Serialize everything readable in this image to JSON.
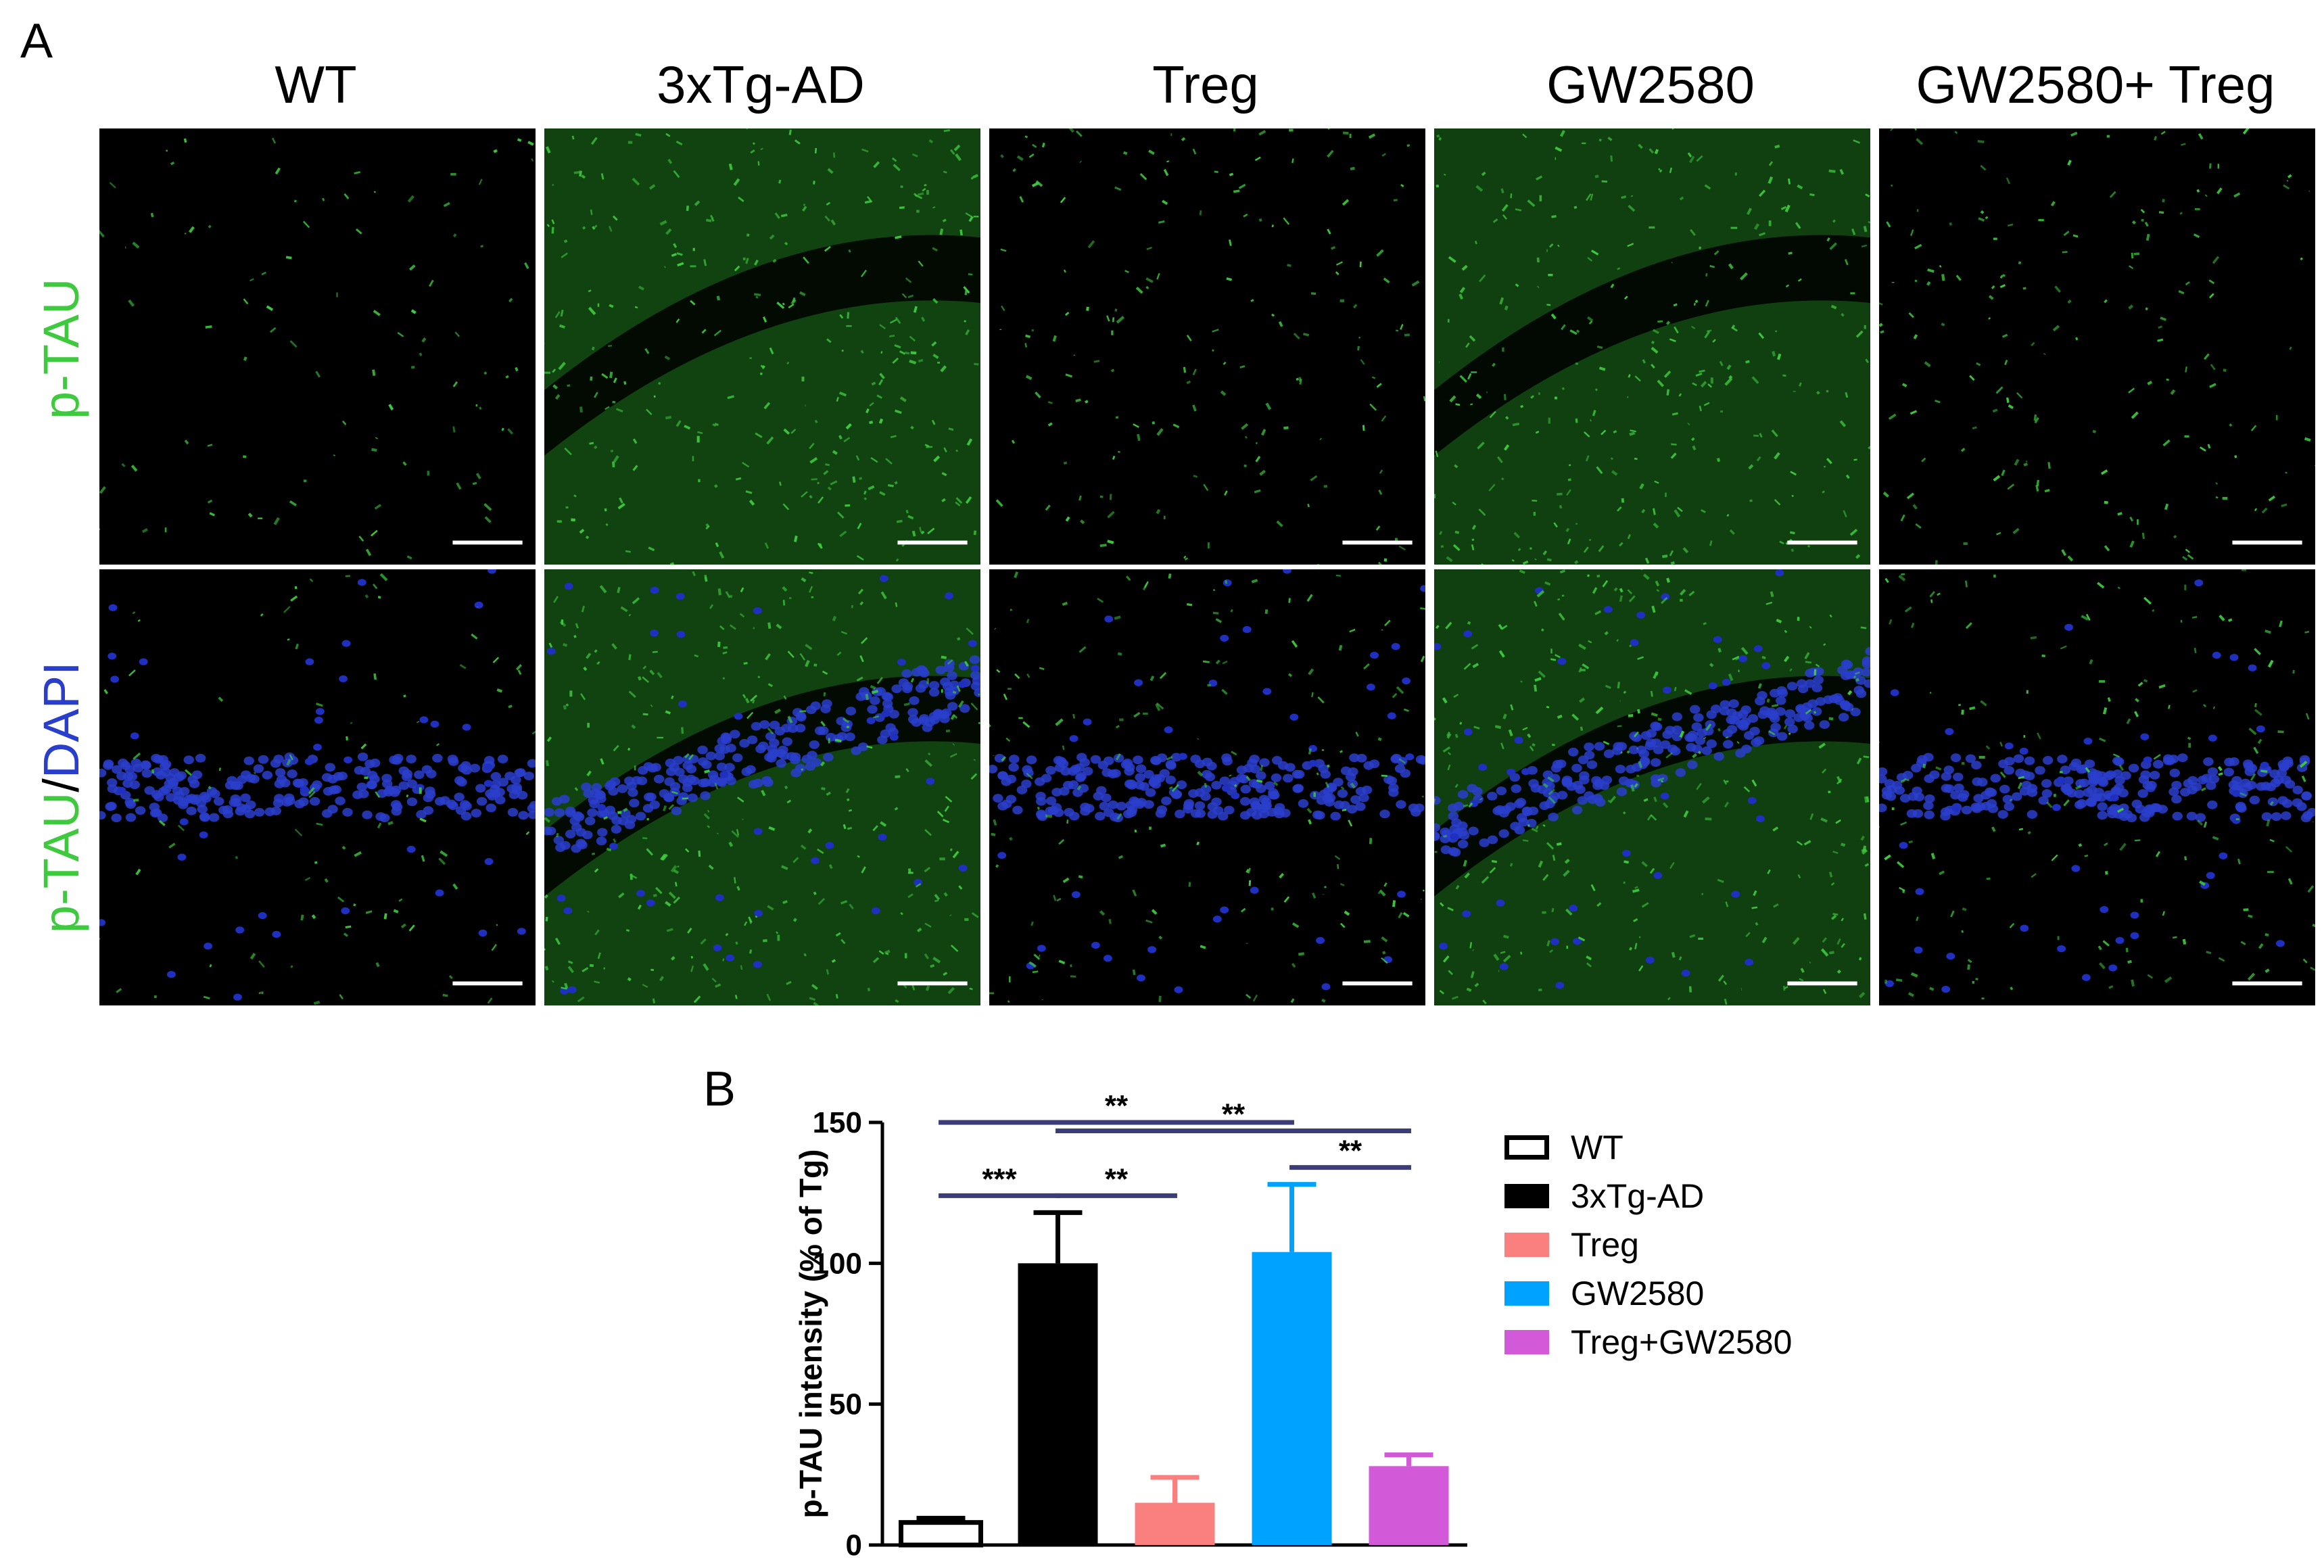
{
  "figure": {
    "panel_a_label": "A",
    "panel_b_label": "B",
    "columns": [
      "WT",
      "3xTg-AD",
      "Treg",
      "GW2580",
      "GW2580+ Treg"
    ],
    "row_labels": {
      "row1": {
        "part1": "p-TAU"
      },
      "row2": {
        "part1": "p-TAU",
        "sep": "/",
        "part2": "DAPI"
      }
    },
    "colors": {
      "tau_green": "#3ec93e",
      "dapi_blue": "#2a3ecc",
      "sig_line": "#3c3c78"
    }
  },
  "chart_data": {
    "type": "bar",
    "categories": [
      "WT",
      "3xTg-AD",
      "Treg",
      "GW2580",
      "Treg+GW2580"
    ],
    "values": [
      8,
      100,
      15,
      104,
      28
    ],
    "errors": [
      1.5,
      18,
      9,
      24,
      4
    ],
    "colors": [
      "#ffffff",
      "#000000",
      "#fa8080",
      "#00a2ff",
      "#d25ad8"
    ],
    "ylabel": "p-TAU intensity  (% of Tg)",
    "ylim": [
      0,
      150
    ],
    "yticks": [
      0,
      50,
      100,
      150
    ],
    "legend": [
      {
        "label": "WT",
        "color": "#ffffff"
      },
      {
        "label": "3xTg-AD",
        "color": "#000000"
      },
      {
        "label": "Treg",
        "color": "#fa8080"
      },
      {
        "label": "GW2580",
        "color": "#00a2ff"
      },
      {
        "label": "Treg+GW2580",
        "color": "#d25ad8"
      }
    ],
    "legend_position": "right",
    "significance": [
      {
        "from": 0,
        "to": 3,
        "value": 150,
        "label": "**"
      },
      {
        "from": 1,
        "to": 4,
        "value": 147,
        "label": "**"
      },
      {
        "from": 3,
        "to": 4,
        "value": 134,
        "label": "**"
      },
      {
        "from": 0,
        "to": 1,
        "value": 124,
        "label": "***"
      },
      {
        "from": 1,
        "to": 2,
        "value": 124,
        "label": "**"
      }
    ]
  }
}
